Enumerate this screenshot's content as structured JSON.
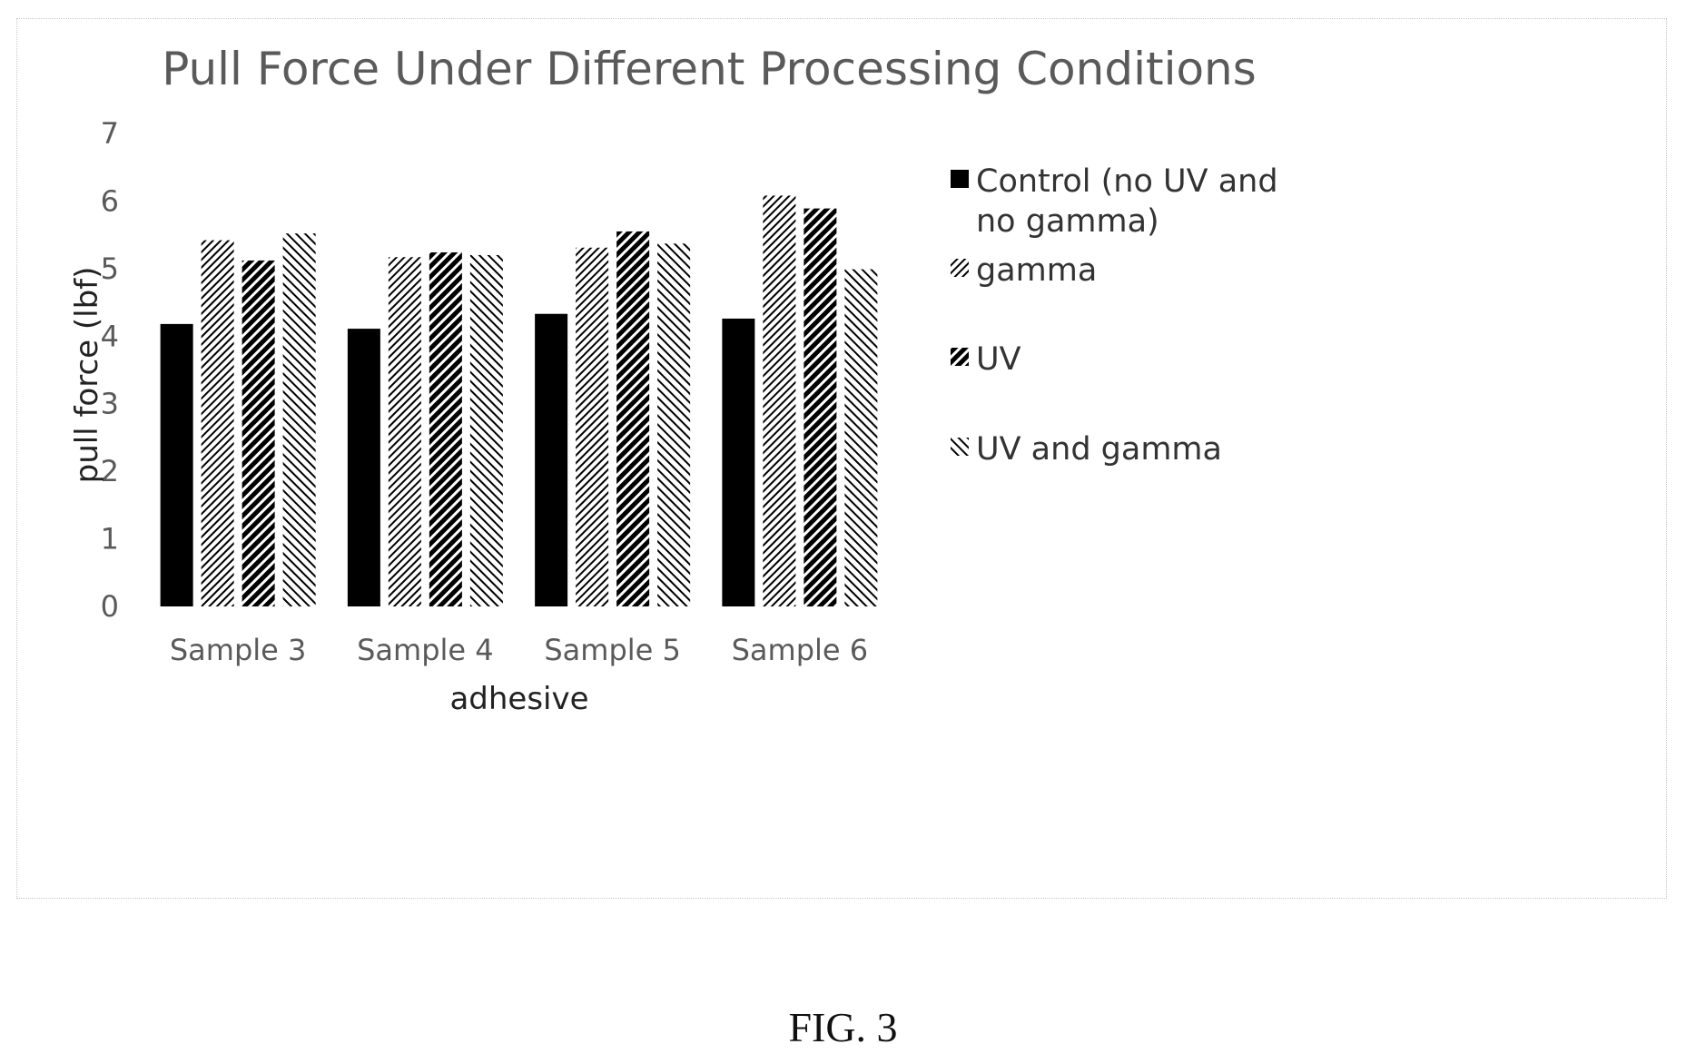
{
  "chart_data": {
    "type": "bar",
    "title": "Pull Force Under Different Processing Conditions",
    "xlabel": "adhesive",
    "ylabel": "pull force (lbf)",
    "categories": [
      "Sample 3",
      "Sample 4",
      "Sample 5",
      "Sample 6"
    ],
    "ylim": [
      0,
      7
    ],
    "yticks": [
      0,
      1,
      2,
      3,
      4,
      5,
      6,
      7
    ],
    "grid": false,
    "legend_position": "right",
    "series": [
      {
        "name": "Control (no UV and no gamma)",
        "legend_lines": [
          "Control (no UV and",
          "no gamma)"
        ],
        "pattern": "solid",
        "color": "#000000",
        "values": [
          4.18,
          4.11,
          4.33,
          4.26
        ]
      },
      {
        "name": "gamma",
        "legend_lines": [
          "gamma"
        ],
        "pattern": "fine-diagonal-down",
        "color": "#000000",
        "values": [
          5.42,
          5.17,
          5.31,
          6.08
        ]
      },
      {
        "name": "UV",
        "legend_lines": [
          "UV"
        ],
        "pattern": "wide-diagonal-down",
        "color": "#000000",
        "values": [
          5.12,
          5.24,
          5.55,
          5.89
        ]
      },
      {
        "name": "UV and gamma",
        "legend_lines": [
          "UV and gamma"
        ],
        "pattern": "diagonal-up",
        "color": "#000000",
        "values": [
          5.52,
          5.2,
          5.37,
          4.99
        ]
      }
    ]
  },
  "caption": "FIG. 3"
}
